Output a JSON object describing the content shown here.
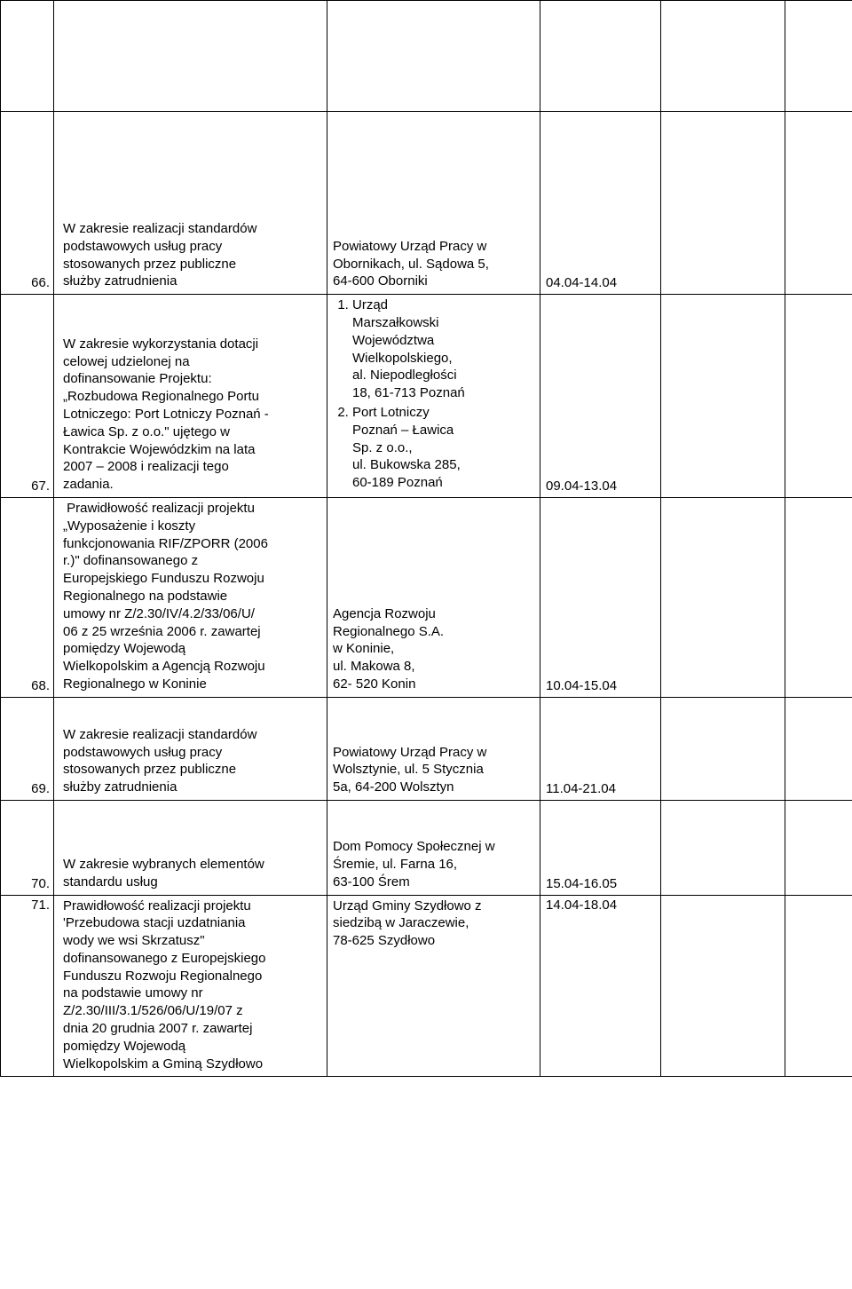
{
  "rows": [
    {
      "num": "66.",
      "desc_lines": [
        "W zakresie realizacji standardów",
        "podstawowych usług pracy",
        "stosowanych przez publiczne",
        "służby zatrudnienia"
      ],
      "loc_lines": [
        "Powiatowy Urząd Pracy w",
        "Obornikach, ul. Sądowa 5,",
        "64-600 Oborniki"
      ],
      "date": "04.04-14.04"
    },
    {
      "num": "67.",
      "desc_lines": [
        "W zakresie wykorzystania dotacji",
        "celowej udzielonej na",
        "dofinansowanie Projektu:",
        "„Rozbudowa Regionalnego Portu",
        "Lotniczego: Port Lotniczy Poznań -",
        "Ławica Sp. z o.o.\" ujętego w",
        "Kontrakcie Wojewódzkim na lata",
        "2007 – 2008 i realizacji tego",
        "zadania."
      ],
      "loc_list": [
        {
          "lead": "Urząd",
          "rest": [
            "Marszałkowski",
            "Województwa",
            "Wielkopolskiego,",
            "al. Niepodległości",
            "18, 61-713 Poznań"
          ]
        },
        {
          "lead": "Port Lotniczy",
          "rest": [
            "Poznań – Ławica",
            "Sp. z o.o.,",
            "ul. Bukowska 285,",
            "60-189 Poznań"
          ]
        }
      ],
      "date": "09.04-13.04"
    },
    {
      "num": "68.",
      "desc_lines": [
        " Prawidłowość realizacji projektu",
        "„Wyposażenie i koszty",
        "funkcjonowania RIF/ZPORR (2006",
        "r.)\" dofinansowanego z",
        "Europejskiego Funduszu Rozwoju",
        "Regionalnego na podstawie",
        "umowy nr Z/2.30/IV/4.2/33/06/U/",
        "06 z 25 września 2006 r. zawartej",
        "pomiędzy Wojewodą",
        "Wielkopolskim a Agencją Rozwoju",
        "Regionalnego w Koninie"
      ],
      "loc_lines": [
        "Agencja Rozwoju",
        "Regionalnego S.A.",
        "w Koninie,",
        "ul. Makowa 8,",
        "62- 520 Konin"
      ],
      "date": "10.04-15.04"
    },
    {
      "num": "69.",
      "desc_lines": [
        "W zakresie realizacji standardów",
        "podstawowych usług pracy",
        "stosowanych przez publiczne",
        "służby zatrudnienia"
      ],
      "loc_lines": [
        "Powiatowy Urząd Pracy w",
        "Wolsztynie, ul. 5 Stycznia",
        "5a, 64-200 Wolsztyn"
      ],
      "date": "11.04-21.04"
    },
    {
      "num": "70.",
      "desc_lines": [
        "W zakresie wybranych elementów",
        "standardu usług"
      ],
      "loc_lines": [
        "Dom Pomocy Społecznej w",
        "Śremie, ul. Farna 16,",
        "63-100 Śrem"
      ],
      "date": "15.04-16.05"
    },
    {
      "num": "71.",
      "desc_lines": [
        "Prawidłowość realizacji projektu",
        "'Przebudowa stacji uzdatniania",
        "wody we wsi Skrzatusz\"",
        "dofinansowanego z Europejskiego",
        "Funduszu Rozwoju Regionalnego",
        "na podstawie umowy nr",
        "Z/2.30/III/3.1/526/06/U/19/07 z",
        "dnia 20 grudnia 2007 r. zawartej",
        "pomiędzy Wojewodą",
        "Wielkopolskim a Gminą Szydłowo"
      ],
      "loc_lines": [
        "Urząd Gminy Szydłowo z",
        "siedzibą w Jaraczewie,",
        "78-625 Szydłowo"
      ],
      "date": "14.04-18.04"
    }
  ],
  "spacer_heights": {
    "row66": "120px",
    "row69": "30px",
    "row70": "60px"
  }
}
